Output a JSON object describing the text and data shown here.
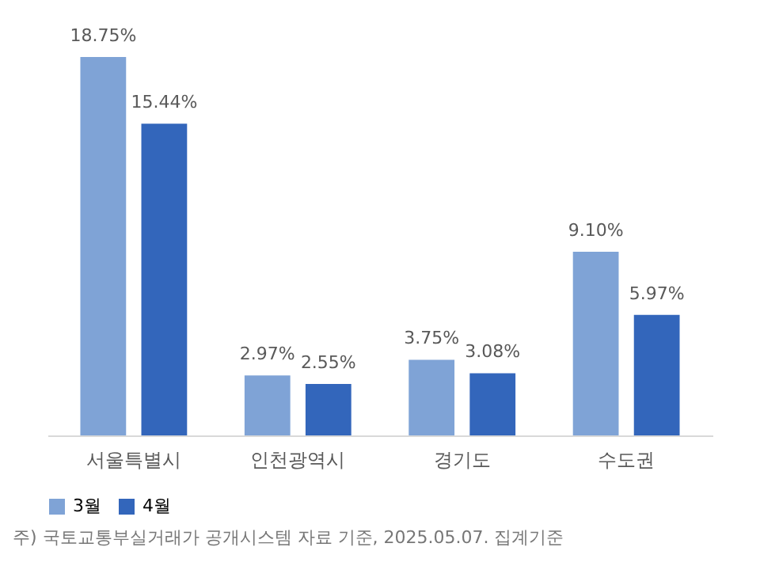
{
  "chart_data": {
    "type": "bar",
    "categories": [
      "서울특별시",
      "인천광역시",
      "경기도",
      "수도권"
    ],
    "series": [
      {
        "name": "3월",
        "color": "#7fa3d6",
        "values": [
          18.75,
          2.97,
          3.75,
          9.1
        ],
        "value_labels": [
          "18.75%",
          "2.97%",
          "3.75%",
          "9.10%"
        ]
      },
      {
        "name": "4월",
        "color": "#3366bb",
        "values": [
          15.44,
          2.55,
          3.08,
          5.97
        ],
        "value_labels": [
          "15.44%",
          "2.55%",
          "3.08%",
          "5.97%"
        ]
      }
    ],
    "legend": "bottom",
    "annotations": [
      "주) 국토교통부실거래가 공개시스템 자료 기준, 2025.05.07. 집계기준"
    ]
  }
}
